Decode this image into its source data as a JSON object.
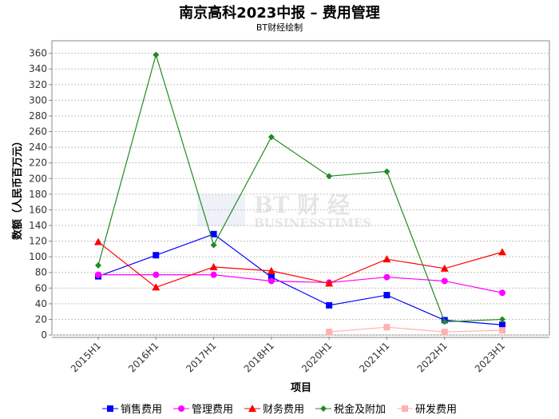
{
  "title": "南京高科2023中报 – 费用管理",
  "subtitle": "BT财经绘制",
  "watermark": "BT财经 BUSINESSTIMES",
  "chart_data": {
    "type": "line",
    "title": "南京高科2023中报 – 费用管理",
    "subtitle": "BT财经绘制",
    "xlabel": "项目",
    "ylabel": "数额（人民币百万元）",
    "categories": [
      "2015H1",
      "2016H1",
      "2017H1",
      "2018H1",
      "2020H1",
      "2021H1",
      "2022H1",
      "2023H1"
    ],
    "ylim": [
      0,
      376
    ],
    "yticks": [
      0,
      20,
      40,
      60,
      80,
      100,
      120,
      140,
      160,
      180,
      200,
      220,
      240,
      260,
      280,
      300,
      320,
      340,
      360
    ],
    "grid": true,
    "legend": "bottom",
    "series": [
      {
        "name": "销售费用",
        "color": "#0000ff",
        "marker": "square",
        "values": [
          75,
          102,
          129,
          74,
          38,
          51,
          19,
          13
        ]
      },
      {
        "name": "管理费用",
        "color": "#ff00ff",
        "marker": "circle",
        "values": [
          77,
          77,
          77,
          69,
          67,
          74,
          69,
          54
        ]
      },
      {
        "name": "财务费用",
        "color": "#ff0000",
        "marker": "triangle",
        "values": [
          119,
          61,
          87,
          82,
          66,
          97,
          85,
          106
        ]
      },
      {
        "name": "税金及附加",
        "color": "#228b22",
        "marker": "diamond",
        "values": [
          89,
          358,
          115,
          253,
          203,
          209,
          17,
          20
        ]
      },
      {
        "name": "研发费用",
        "color": "#ffb0b0",
        "marker": "square",
        "values": [
          null,
          null,
          null,
          null,
          4,
          10,
          4,
          6
        ]
      }
    ]
  }
}
